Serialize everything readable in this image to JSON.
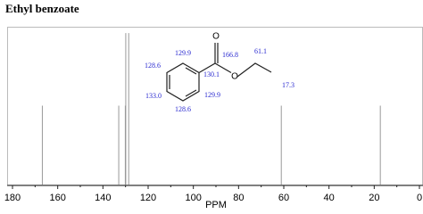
{
  "chart_data": {
    "type": "nmr",
    "title": "Ethyl benzoate",
    "x_label": "PPM",
    "x": [
      166.8,
      133.0,
      130.1,
      129.9,
      128.6,
      61.1,
      17.3
    ],
    "values": [
      0.5,
      0.5,
      0.5,
      0.96,
      0.96,
      0.5,
      0.5
    ],
    "color": "#999999",
    "xlim": [
      180,
      0
    ],
    "ylim": [
      0,
      1
    ],
    "xticks": [
      180,
      160,
      140,
      120,
      100,
      80,
      60,
      40,
      20,
      0
    ],
    "xminorticks": [
      170,
      150,
      130,
      110,
      90,
      70,
      50,
      30,
      10
    ],
    "structure_labels": [
      "129.9",
      "128.6",
      "130.1",
      "166.8",
      "133.0",
      "129.9",
      "128.6",
      "61.1",
      "17.3"
    ],
    "atoms": [
      "O",
      "O"
    ]
  }
}
